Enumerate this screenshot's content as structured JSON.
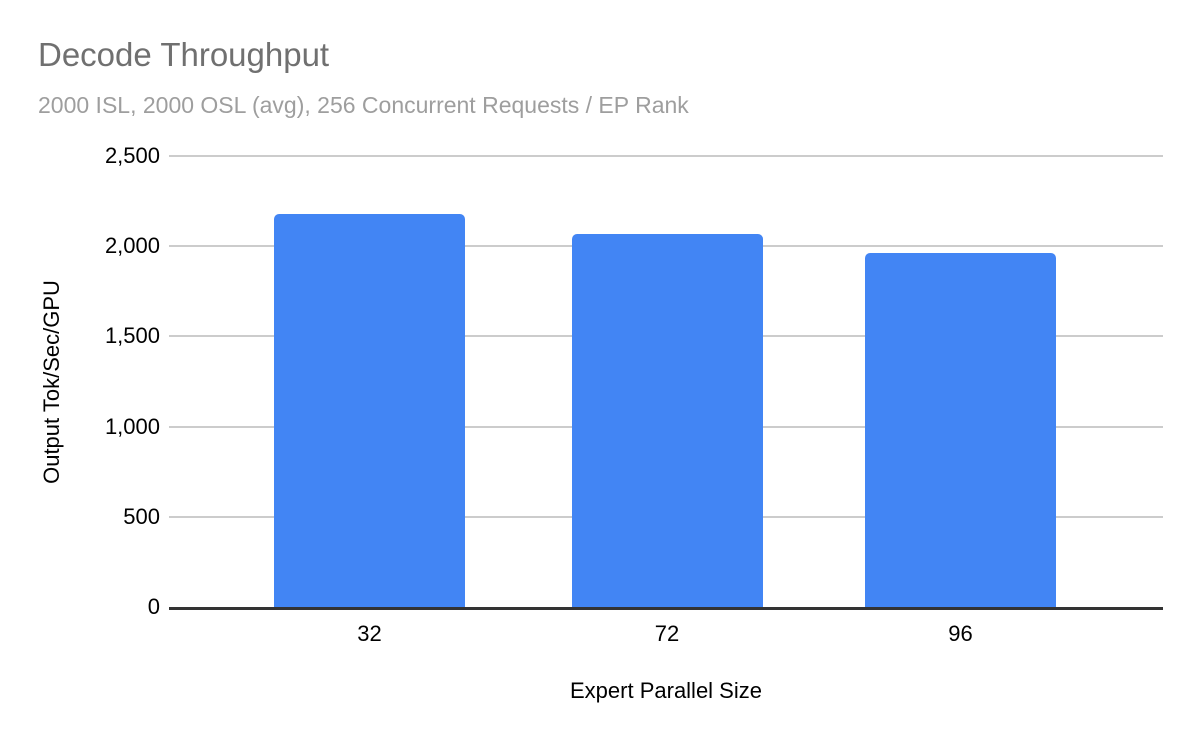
{
  "chart_data": {
    "type": "bar",
    "title": "Decode Throughput",
    "subtitle": "2000 ISL, 2000 OSL (avg), 256 Concurrent Requests / EP Rank",
    "categories": [
      "32",
      "72",
      "96"
    ],
    "values": [
      2180,
      2065,
      1965
    ],
    "xlabel": "Expert Parallel Size",
    "ylabel": "Output Tok/Sec/GPU",
    "ylim": [
      0,
      2500
    ],
    "y_ticks": [
      0,
      500,
      1000,
      1500,
      2000,
      2500
    ],
    "grid": true,
    "legend_position": "none",
    "bar_color": "#4285f4",
    "colors": {
      "title": "#707070",
      "subtitle": "#9e9e9e",
      "gridline": "#cccccc",
      "axis_line": "#333333",
      "tick_text": "#000000",
      "background": "#ffffff"
    }
  }
}
